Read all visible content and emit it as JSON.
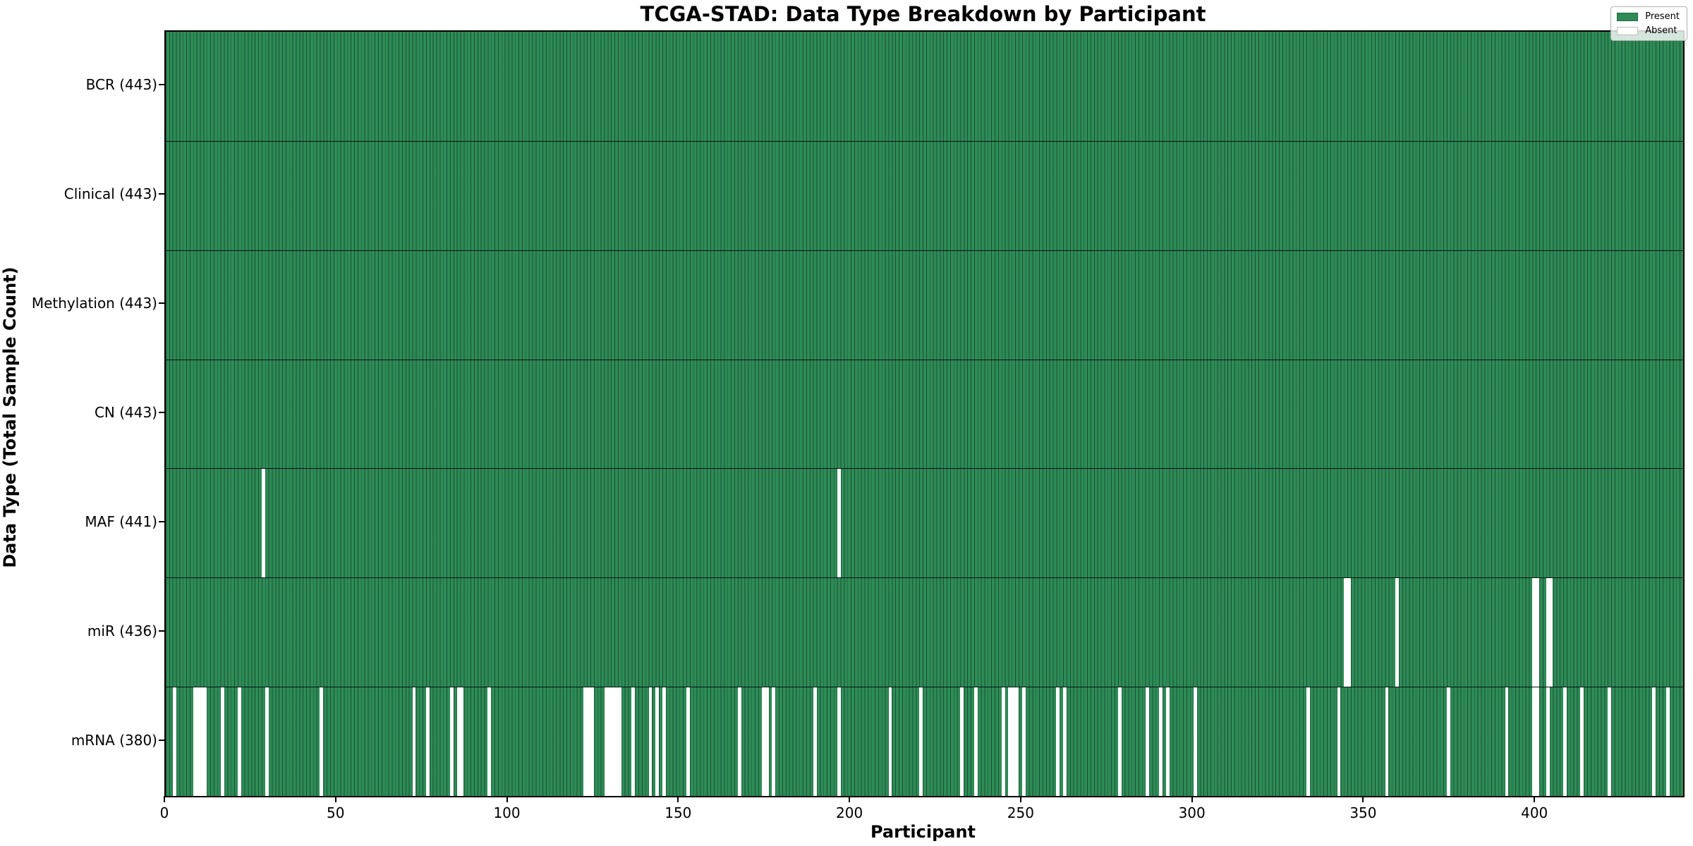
{
  "chart_data": {
    "type": "heatmap",
    "title": "TCGA-STAD: Data Type Breakdown by Participant",
    "xlabel": "Participant",
    "ylabel": "Data Type (Total Sample Count)",
    "x_ticks": [
      0,
      50,
      100,
      150,
      200,
      250,
      300,
      350,
      400
    ],
    "x_range": [
      0,
      443
    ],
    "n_participants": 443,
    "grid": false,
    "legend_position": "upper-right",
    "legend": [
      {
        "label": "Present",
        "color": "#2e8b57"
      },
      {
        "label": "Absent",
        "color": "#ffffff"
      }
    ],
    "colors": {
      "present": "#2e8b57",
      "absent": "#ffffff",
      "bar_edge": "rgba(5,35,20,0.55)",
      "row_separator": "#000000",
      "text": "#000000",
      "background": "#ffffff"
    },
    "rows": [
      {
        "name": "BCR",
        "label": "BCR (443)",
        "present_count": 443,
        "absent_participants": []
      },
      {
        "name": "Clinical",
        "label": "Clinical (443)",
        "present_count": 443,
        "absent_participants": []
      },
      {
        "name": "Methylation",
        "label": "Methylation (443)",
        "present_count": 443,
        "absent_participants": []
      },
      {
        "name": "CN",
        "label": "CN (443)",
        "present_count": 443,
        "absent_participants": []
      },
      {
        "name": "MAF",
        "label": "MAF (441)",
        "present_count": 441,
        "absent_participants": [
          28,
          196
        ]
      },
      {
        "name": "miR",
        "label": "miR (436)",
        "present_count": 436,
        "absent_participants": [
          344,
          345,
          359,
          399,
          400,
          403,
          404
        ]
      },
      {
        "name": "mRNA",
        "label": "mRNA (380)",
        "present_count": 380,
        "absent_participants": [
          2,
          8,
          9,
          10,
          11,
          16,
          21,
          29,
          45,
          72,
          76,
          83,
          85,
          86,
          94,
          122,
          123,
          124,
          128,
          129,
          130,
          131,
          132,
          136,
          141,
          143,
          145,
          152,
          167,
          174,
          175,
          177,
          189,
          196,
          211,
          220,
          232,
          236,
          244,
          246,
          247,
          248,
          250,
          260,
          262,
          278,
          286,
          290,
          292,
          300,
          333,
          342,
          356,
          374,
          391,
          399,
          400,
          403,
          408,
          413,
          421,
          434,
          438
        ]
      }
    ]
  }
}
